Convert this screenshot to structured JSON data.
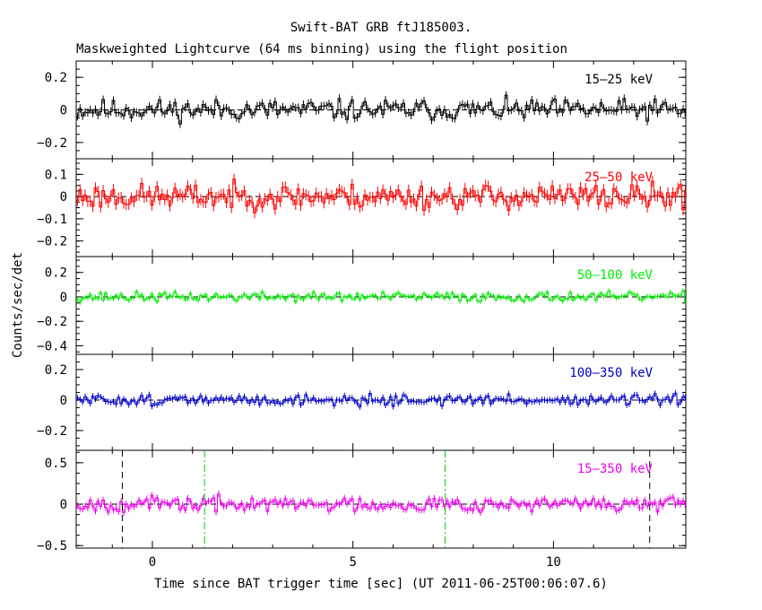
{
  "chart_data": {
    "type": "line",
    "title": "Swift-BAT GRB ftJ185003.",
    "subtitle": "Maskweighted Lightcurve (64 ms binning) using the flight position",
    "xlabel": "Time since BAT trigger time [sec] (UT 2011-06-25T00:06:07.6)",
    "ylabel": "Counts/sec/det",
    "xlim": [
      -1.9,
      13.3
    ],
    "x_ticks": [
      0,
      5,
      10
    ],
    "x_tick_labels": [
      "0",
      "5",
      "10"
    ],
    "bin_width": 0.064,
    "panels": [
      {
        "name": "15-25 keV",
        "label": "15–25 keV",
        "color": "#000000",
        "ylim": [
          -0.3,
          0.3
        ],
        "y_ticks": [
          -0.2,
          0,
          0.2
        ],
        "y_tick_labels": [
          "−0.2",
          "0",
          "0.2"
        ],
        "noise_amplitude": 0.045,
        "error": 0.025,
        "seed": 11
      },
      {
        "name": "25-50 keV",
        "label": "25–50 keV",
        "color": "#ff0000",
        "ylim": [
          -0.27,
          0.17
        ],
        "y_ticks": [
          -0.2,
          -0.1,
          0,
          0.1
        ],
        "y_tick_labels": [
          "−0.2",
          "−0.1",
          "0",
          "0.1"
        ],
        "noise_amplitude": 0.04,
        "error": 0.025,
        "seed": 23
      },
      {
        "name": "50-100 keV",
        "label": "50–100 keV",
        "color": "#00ee00",
        "ylim": [
          -0.47,
          0.33
        ],
        "y_ticks": [
          -0.4,
          -0.2,
          0,
          0.2
        ],
        "y_tick_labels": [
          "−0.4",
          "−0.2",
          "0",
          "0.2"
        ],
        "noise_amplitude": 0.028,
        "error": 0.02,
        "seed": 37
      },
      {
        "name": "100-350 keV",
        "label": "100–350 keV",
        "color": "#0000cc",
        "ylim": [
          -0.33,
          0.3
        ],
        "y_ticks": [
          -0.2,
          0,
          0.2
        ],
        "y_tick_labels": [
          "−0.2",
          "0",
          "0.2"
        ],
        "noise_amplitude": 0.025,
        "error": 0.02,
        "seed": 51
      },
      {
        "name": "15-350 keV",
        "label": "15–350 keV",
        "color": "#ee00ee",
        "ylim": [
          -0.53,
          0.65
        ],
        "y_ticks": [
          -0.5,
          0,
          0.5
        ],
        "y_tick_labels": [
          "−0.5",
          "0",
          "0.5"
        ],
        "noise_amplitude": 0.065,
        "error": 0.04,
        "seed": 67
      }
    ],
    "markers": [
      {
        "name": "t90-start",
        "x": -0.75,
        "style": "dashed",
        "color": "#000000"
      },
      {
        "name": "t50-start",
        "x": 1.3,
        "style": "dashdot",
        "color": "#00cc00"
      },
      {
        "name": "t50-end",
        "x": 7.3,
        "style": "dashdot",
        "color": "#00cc00"
      },
      {
        "name": "t90-end",
        "x": 12.4,
        "style": "dashed",
        "color": "#000000"
      }
    ]
  }
}
